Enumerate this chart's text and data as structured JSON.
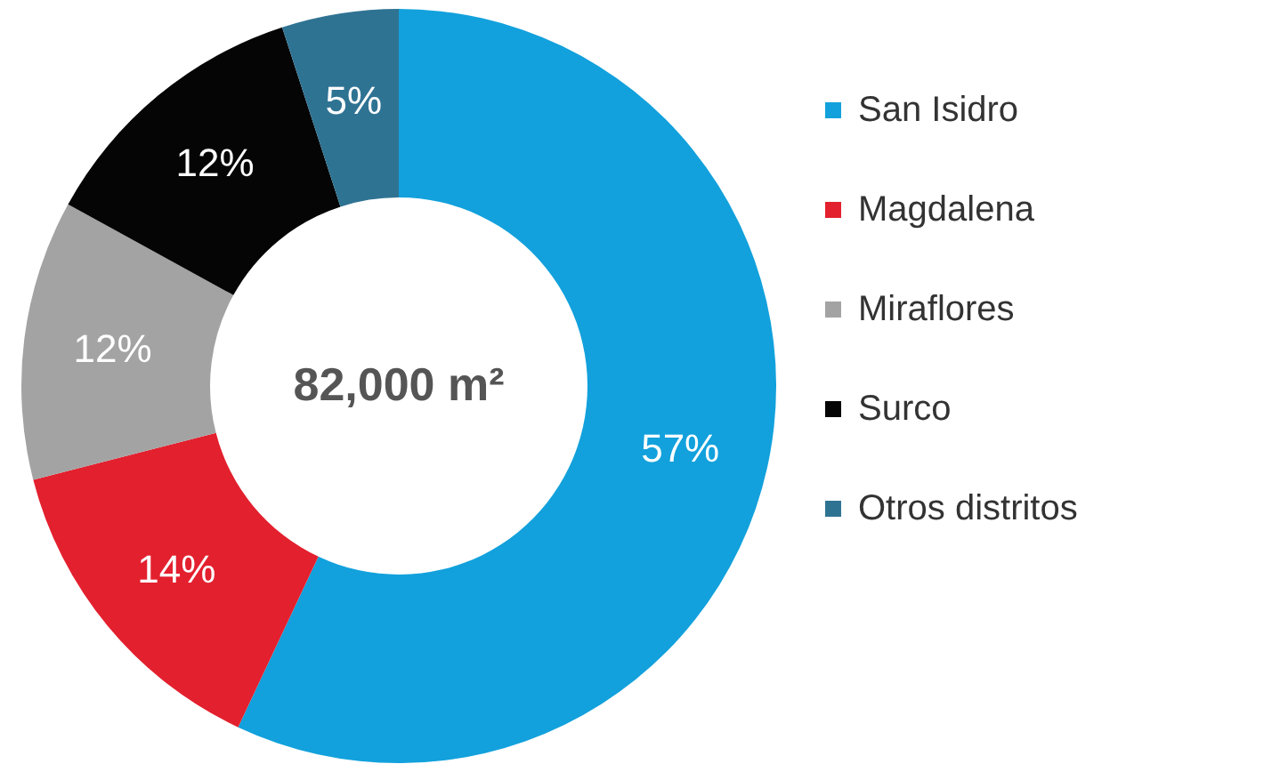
{
  "chart_data": {
    "type": "donut",
    "categories": [
      "San Isidro",
      "Magdalena",
      "Miraflores",
      "Surco",
      "Otros distritos"
    ],
    "values": [
      57,
      14,
      12,
      12,
      5
    ],
    "colors": [
      "#12a1dc",
      "#e3202e",
      "#a3a3a3",
      "#050505",
      "#2f7393"
    ],
    "value_labels": [
      "57%",
      "14%",
      "12%",
      "12%",
      "5%"
    ],
    "annotations": [
      "82,000 m²"
    ],
    "legend": "right"
  }
}
